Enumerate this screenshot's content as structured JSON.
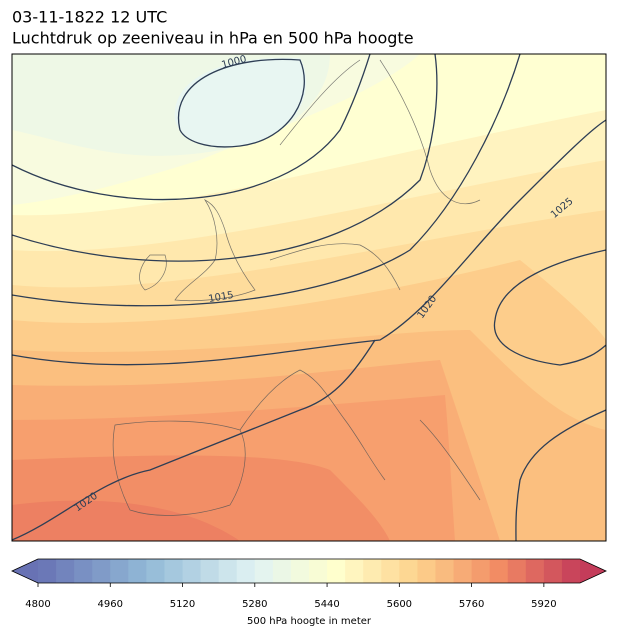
{
  "header": {
    "title": "03-11-1822 12 UTC",
    "subtitle": "Luchtdruk op zeeniveau in hPa en 500 hPa hoogte"
  },
  "map": {
    "isobar_labels": [
      1000,
      1015,
      1020,
      1025,
      1020
    ]
  },
  "colorbar": {
    "range": [
      4800,
      6000
    ],
    "step": 40,
    "ticks": [
      4800,
      4960,
      5120,
      5280,
      5440,
      5600,
      5760,
      5920
    ],
    "label": "500 hPa hoogte in meter"
  }
}
